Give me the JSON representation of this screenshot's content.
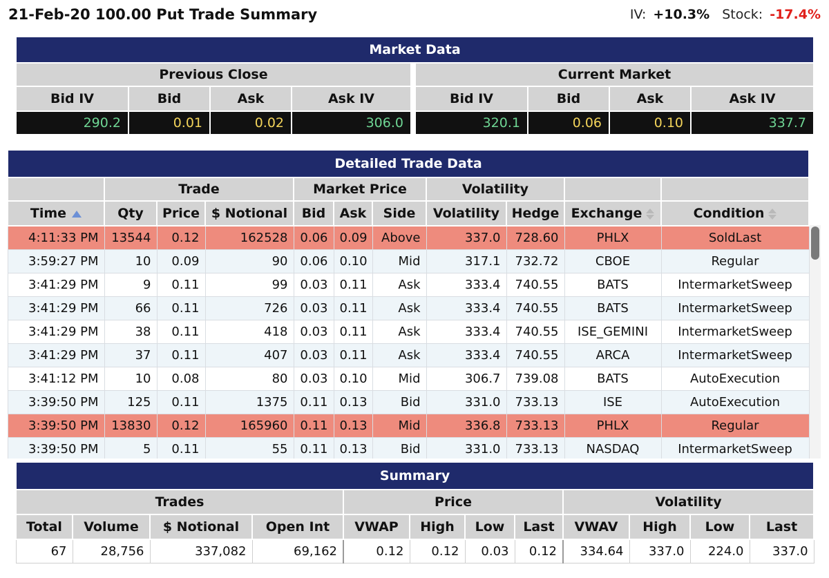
{
  "header": {
    "title": "21-Feb-20 100.00 Put Trade Summary",
    "iv_label": "IV:",
    "iv_value": "+10.3%",
    "stock_label": "Stock:",
    "stock_value": "-17.4%"
  },
  "market": {
    "banner": "Market Data",
    "previous_close_label": "Previous Close",
    "current_market_label": "Current Market",
    "columns": [
      "Bid IV",
      "Bid",
      "Ask",
      "Ask IV"
    ],
    "previous": {
      "bid_iv": "290.2",
      "bid": "0.01",
      "ask": "0.02",
      "ask_iv": "306.0"
    },
    "current": {
      "bid_iv": "320.1",
      "bid": "0.06",
      "ask": "0.10",
      "ask_iv": "337.7"
    }
  },
  "trades": {
    "banner": "Detailed Trade Data",
    "groups": {
      "trade": "Trade",
      "market_price": "Market Price",
      "volatility": "Volatility"
    },
    "columns": [
      "Time",
      "Qty",
      "Price",
      "$ Notional",
      "Bid",
      "Ask",
      "Side",
      "Volatility",
      "Hedge",
      "Exchange",
      "Condition"
    ],
    "rows": [
      {
        "time": "4:11:33 PM",
        "qty": "13544",
        "price": "0.12",
        "notional": "162528",
        "bid": "0.06",
        "ask": "0.09",
        "side": "Above",
        "vol": "337.0",
        "hedge": "728.60",
        "exchange": "PHLX",
        "condition": "SoldLast",
        "highlight": true
      },
      {
        "time": "3:59:27 PM",
        "qty": "10",
        "price": "0.09",
        "notional": "90",
        "bid": "0.06",
        "ask": "0.10",
        "side": "Mid",
        "vol": "317.1",
        "hedge": "732.72",
        "exchange": "CBOE",
        "condition": "Regular",
        "highlight": false
      },
      {
        "time": "3:41:29 PM",
        "qty": "9",
        "price": "0.11",
        "notional": "99",
        "bid": "0.03",
        "ask": "0.11",
        "side": "Ask",
        "vol": "333.4",
        "hedge": "740.55",
        "exchange": "BATS",
        "condition": "IntermarketSweep",
        "highlight": false
      },
      {
        "time": "3:41:29 PM",
        "qty": "66",
        "price": "0.11",
        "notional": "726",
        "bid": "0.03",
        "ask": "0.11",
        "side": "Ask",
        "vol": "333.4",
        "hedge": "740.55",
        "exchange": "BATS",
        "condition": "IntermarketSweep",
        "highlight": false
      },
      {
        "time": "3:41:29 PM",
        "qty": "38",
        "price": "0.11",
        "notional": "418",
        "bid": "0.03",
        "ask": "0.11",
        "side": "Ask",
        "vol": "333.4",
        "hedge": "740.55",
        "exchange": "ISE_GEMINI",
        "condition": "IntermarketSweep",
        "highlight": false
      },
      {
        "time": "3:41:29 PM",
        "qty": "37",
        "price": "0.11",
        "notional": "407",
        "bid": "0.03",
        "ask": "0.11",
        "side": "Ask",
        "vol": "333.4",
        "hedge": "740.55",
        "exchange": "ARCA",
        "condition": "IntermarketSweep",
        "highlight": false
      },
      {
        "time": "3:41:12 PM",
        "qty": "10",
        "price": "0.08",
        "notional": "80",
        "bid": "0.03",
        "ask": "0.10",
        "side": "Mid",
        "vol": "306.7",
        "hedge": "739.08",
        "exchange": "BATS",
        "condition": "AutoExecution",
        "highlight": false
      },
      {
        "time": "3:39:50 PM",
        "qty": "125",
        "price": "0.11",
        "notional": "1375",
        "bid": "0.11",
        "ask": "0.13",
        "side": "Bid",
        "vol": "331.0",
        "hedge": "733.13",
        "exchange": "ISE",
        "condition": "AutoExecution",
        "highlight": false
      },
      {
        "time": "3:39:50 PM",
        "qty": "13830",
        "price": "0.12",
        "notional": "165960",
        "bid": "0.11",
        "ask": "0.13",
        "side": "Mid",
        "vol": "336.8",
        "hedge": "733.13",
        "exchange": "PHLX",
        "condition": "Regular",
        "highlight": true
      },
      {
        "time": "3:39:50 PM",
        "qty": "5",
        "price": "0.11",
        "notional": "55",
        "bid": "0.11",
        "ask": "0.13",
        "side": "Bid",
        "vol": "331.0",
        "hedge": "733.13",
        "exchange": "NASDAQ",
        "condition": "IntermarketSweep",
        "highlight": false
      }
    ]
  },
  "summary": {
    "banner": "Summary",
    "groups": {
      "trades": "Trades",
      "price": "Price",
      "volatility": "Volatility"
    },
    "columns": [
      "Total",
      "Volume",
      "$ Notional",
      "Open Int",
      "VWAP",
      "High",
      "Low",
      "Last",
      "VWAV",
      "High",
      "Low",
      "Last"
    ],
    "values": [
      "67",
      "28,756",
      "337,082",
      "69,162",
      "0.12",
      "0.12",
      "0.03",
      "0.12",
      "334.64",
      "337.0",
      "224.0",
      "337.0"
    ]
  },
  "colors": {
    "banner": "#1f2a6b",
    "highlight_row": "#ee8b7d",
    "stock_negative": "#e0201b",
    "iv_green": "#6fd694",
    "price_yellow": "#f3d45a"
  }
}
